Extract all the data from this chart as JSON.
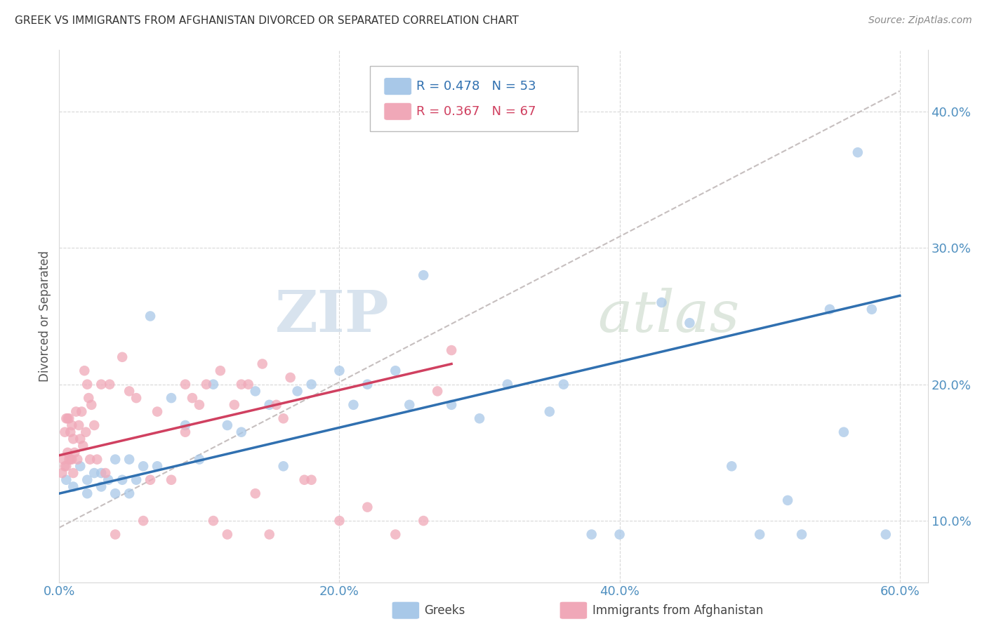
{
  "title": "GREEK VS IMMIGRANTS FROM AFGHANISTAN DIVORCED OR SEPARATED CORRELATION CHART",
  "source": "Source: ZipAtlas.com",
  "ylabel_label": "Divorced or Separated",
  "xlim": [
    0.0,
    0.62
  ],
  "ylim": [
    0.055,
    0.445
  ],
  "xticks": [
    0.0,
    0.2,
    0.4,
    0.6
  ],
  "xtick_labels": [
    "0.0%",
    "20.0%",
    "40.0%",
    "60.0%"
  ],
  "yticks": [
    0.1,
    0.2,
    0.3,
    0.4
  ],
  "ytick_labels": [
    "10.0%",
    "20.0%",
    "30.0%",
    "40.0%"
  ],
  "blue_color": "#A8C8E8",
  "pink_color": "#F0A8B8",
  "blue_line_color": "#3070B0",
  "pink_line_color": "#D04060",
  "dash_color": "#C0B8B8",
  "tick_color": "#5090C0",
  "blue_scatter_x": [
    0.005,
    0.01,
    0.015,
    0.02,
    0.02,
    0.025,
    0.03,
    0.03,
    0.035,
    0.04,
    0.04,
    0.045,
    0.05,
    0.05,
    0.055,
    0.06,
    0.065,
    0.07,
    0.08,
    0.09,
    0.1,
    0.11,
    0.12,
    0.13,
    0.14,
    0.15,
    0.16,
    0.17,
    0.18,
    0.2,
    0.21,
    0.22,
    0.24,
    0.25,
    0.26,
    0.28,
    0.3,
    0.32,
    0.35,
    0.36,
    0.38,
    0.4,
    0.43,
    0.45,
    0.48,
    0.5,
    0.52,
    0.53,
    0.55,
    0.56,
    0.57,
    0.58,
    0.59
  ],
  "blue_scatter_y": [
    0.13,
    0.125,
    0.14,
    0.13,
    0.12,
    0.135,
    0.125,
    0.135,
    0.13,
    0.12,
    0.145,
    0.13,
    0.12,
    0.145,
    0.13,
    0.14,
    0.25,
    0.14,
    0.19,
    0.17,
    0.145,
    0.2,
    0.17,
    0.165,
    0.195,
    0.185,
    0.14,
    0.195,
    0.2,
    0.21,
    0.185,
    0.2,
    0.21,
    0.185,
    0.28,
    0.185,
    0.175,
    0.2,
    0.18,
    0.2,
    0.09,
    0.09,
    0.26,
    0.245,
    0.14,
    0.09,
    0.115,
    0.09,
    0.255,
    0.165,
    0.37,
    0.255,
    0.09
  ],
  "pink_scatter_x": [
    0.002,
    0.003,
    0.004,
    0.004,
    0.005,
    0.005,
    0.006,
    0.006,
    0.007,
    0.007,
    0.008,
    0.008,
    0.009,
    0.009,
    0.01,
    0.01,
    0.011,
    0.012,
    0.013,
    0.014,
    0.015,
    0.016,
    0.017,
    0.018,
    0.019,
    0.02,
    0.021,
    0.022,
    0.023,
    0.025,
    0.027,
    0.03,
    0.033,
    0.036,
    0.04,
    0.045,
    0.05,
    0.055,
    0.06,
    0.065,
    0.07,
    0.08,
    0.09,
    0.1,
    0.11,
    0.12,
    0.13,
    0.14,
    0.15,
    0.16,
    0.18,
    0.2,
    0.22,
    0.24,
    0.26,
    0.27,
    0.28,
    0.09,
    0.095,
    0.105,
    0.115,
    0.125,
    0.135,
    0.145,
    0.155,
    0.165,
    0.175
  ],
  "pink_scatter_y": [
    0.135,
    0.145,
    0.14,
    0.165,
    0.14,
    0.175,
    0.15,
    0.175,
    0.145,
    0.175,
    0.145,
    0.165,
    0.145,
    0.17,
    0.135,
    0.16,
    0.15,
    0.18,
    0.145,
    0.17,
    0.16,
    0.18,
    0.155,
    0.21,
    0.165,
    0.2,
    0.19,
    0.145,
    0.185,
    0.17,
    0.145,
    0.2,
    0.135,
    0.2,
    0.09,
    0.22,
    0.195,
    0.19,
    0.1,
    0.13,
    0.18,
    0.13,
    0.165,
    0.185,
    0.1,
    0.09,
    0.2,
    0.12,
    0.09,
    0.175,
    0.13,
    0.1,
    0.11,
    0.09,
    0.1,
    0.195,
    0.225,
    0.2,
    0.19,
    0.2,
    0.21,
    0.185,
    0.2,
    0.215,
    0.185,
    0.205,
    0.13
  ],
  "blue_line_x0": 0.0,
  "blue_line_y0": 0.12,
  "blue_line_x1": 0.6,
  "blue_line_y1": 0.265,
  "pink_line_x0": 0.0,
  "pink_line_y0": 0.148,
  "pink_line_x1": 0.28,
  "pink_line_y1": 0.215,
  "dash_line_x0": 0.0,
  "dash_line_y0": 0.095,
  "dash_line_x1": 0.6,
  "dash_line_y1": 0.415,
  "legend_R1": "R = 0.478",
  "legend_N1": "N = 53",
  "legend_R2": "R = 0.367",
  "legend_N2": "N = 67",
  "legend_label1": "Greeks",
  "legend_label2": "Immigrants from Afghanistan",
  "grid_color": "#D8D8D8",
  "bg_color": "#FFFFFF",
  "watermark_zip_color": "#C8D8E8",
  "watermark_atlas_color": "#C8D8C8"
}
